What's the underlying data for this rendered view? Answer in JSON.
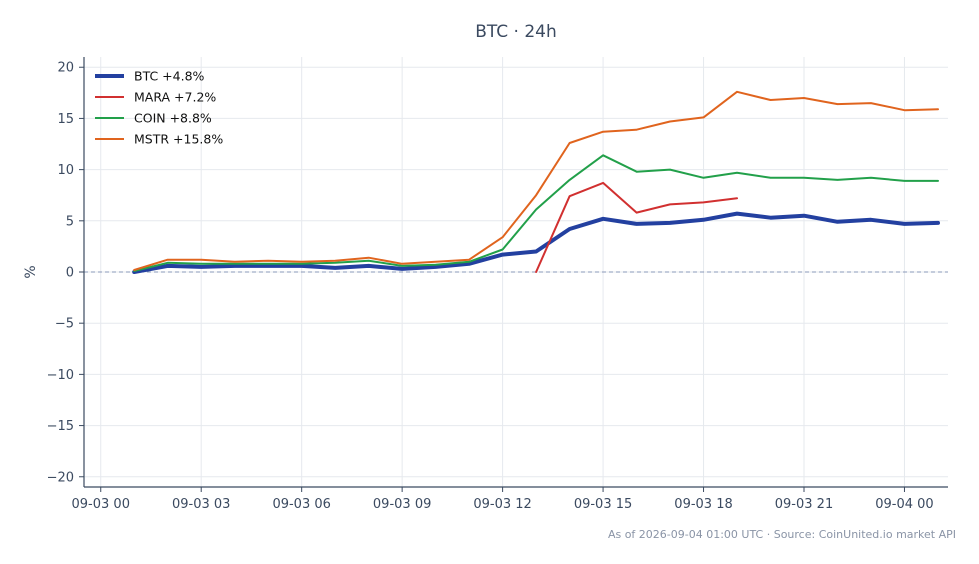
{
  "chart_data": {
    "type": "line",
    "title": "BTC · 24h",
    "ylabel": "%",
    "xlabel": "",
    "ylim": [
      -21,
      21
    ],
    "yticks": [
      -20,
      -15,
      -10,
      -5,
      0,
      5,
      10,
      15,
      20
    ],
    "yticklabels": [
      "−20",
      "−15",
      "−10",
      "−5",
      "0",
      "5",
      "10",
      "15",
      "20"
    ],
    "x_range_hours": [
      -0.5,
      25.3
    ],
    "xticks_hours": [
      0,
      3,
      6,
      9,
      12,
      15,
      18,
      21,
      24
    ],
    "xticklabels": [
      "09-03 00",
      "09-03 03",
      "09-03 06",
      "09-03 09",
      "09-03 12",
      "09-03 15",
      "09-03 18",
      "09-03 21",
      "09-04 00"
    ],
    "grid": true,
    "zero_line": true,
    "legend_position": "top-left",
    "series": [
      {
        "name": "BTC +4.8%",
        "color": "#2340a0",
        "width": 4,
        "x": [
          1,
          2,
          3,
          4,
          5,
          6,
          7,
          8,
          9,
          10,
          11,
          12,
          13,
          14,
          15,
          16,
          17,
          18,
          19,
          20,
          21,
          22,
          23,
          24,
          25
        ],
        "y": [
          0.0,
          0.6,
          0.5,
          0.6,
          0.6,
          0.6,
          0.4,
          0.6,
          0.3,
          0.5,
          0.8,
          1.7,
          2.0,
          4.2,
          5.2,
          4.7,
          4.8,
          5.1,
          5.7,
          5.3,
          5.5,
          4.9,
          5.1,
          4.7,
          4.8
        ]
      },
      {
        "name": "MARA +7.2%",
        "color": "#d13030",
        "width": 2,
        "x": [
          13,
          14,
          15,
          16,
          17,
          18,
          19
        ],
        "y": [
          0.0,
          7.4,
          8.7,
          5.8,
          6.6,
          6.8,
          7.2
        ]
      },
      {
        "name": "COIN +8.8%",
        "color": "#22a04a",
        "width": 2,
        "x": [
          1,
          2,
          3,
          4,
          5,
          6,
          7,
          8,
          9,
          10,
          11,
          12,
          13,
          14,
          15,
          16,
          17,
          18,
          19,
          20,
          21,
          22,
          23,
          24,
          25
        ],
        "y": [
          0.1,
          0.9,
          0.8,
          0.8,
          0.8,
          0.8,
          0.9,
          1.1,
          0.6,
          0.7,
          1.0,
          2.2,
          6.1,
          9.0,
          11.4,
          9.8,
          10.0,
          9.2,
          9.7,
          9.2,
          9.2,
          9.0,
          9.2,
          8.9,
          8.9
        ]
      },
      {
        "name": "MSTR +15.8%",
        "color": "#e0641e",
        "width": 2,
        "x": [
          1,
          2,
          3,
          4,
          5,
          6,
          7,
          8,
          9,
          10,
          11,
          12,
          13,
          14,
          15,
          16,
          17,
          18,
          19,
          20,
          21,
          22,
          23,
          24,
          25
        ],
        "y": [
          0.2,
          1.2,
          1.2,
          1.0,
          1.1,
          1.0,
          1.1,
          1.4,
          0.8,
          1.0,
          1.2,
          3.4,
          7.5,
          12.6,
          13.7,
          13.9,
          14.7,
          15.1,
          17.6,
          16.8,
          17.0,
          16.4,
          16.5,
          15.8,
          15.9
        ]
      }
    ],
    "footer": "As of 2026-09-04 01:00 UTC · Source: CoinUnited.io market API"
  },
  "colors": {
    "axis": "#3b4a60",
    "grid": "#e6e9ee",
    "zero_line": "#8a98b8"
  }
}
